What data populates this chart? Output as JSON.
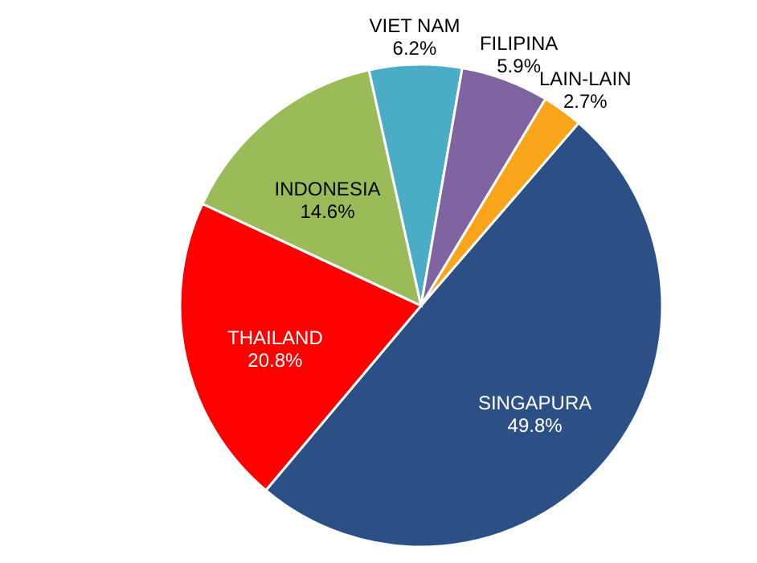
{
  "chart_data": {
    "type": "pie",
    "categories": [
      "SINGAPURA",
      "THAILAND",
      "INDONESIA",
      "VIET NAM",
      "FILIPINA",
      "LAIN-LAIN"
    ],
    "values": [
      49.8,
      20.8,
      14.6,
      6.2,
      5.9,
      2.7
    ],
    "colors": [
      "#2c5085",
      "#ff0000",
      "#9bbb59",
      "#4bacc6",
      "#8064a2",
      "#f9a51b"
    ],
    "value_labels": [
      "49.8%",
      "20.8%",
      "14.6%",
      "6.2%",
      "5.9%",
      "2.7%"
    ]
  }
}
